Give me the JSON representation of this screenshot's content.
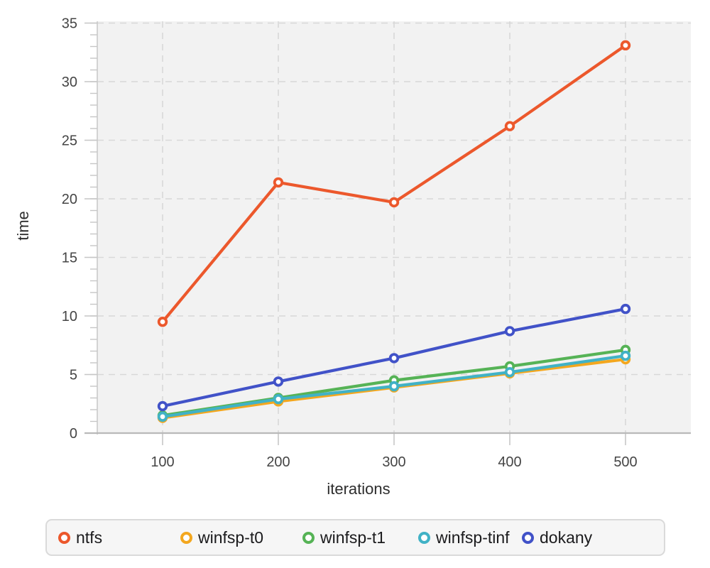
{
  "chart_data": {
    "type": "line",
    "title": "",
    "xlabel": "iterations",
    "ylabel": "time",
    "x": [
      100,
      200,
      300,
      400,
      500
    ],
    "series": [
      {
        "name": "ntfs",
        "color": "#ec582c",
        "values": [
          9.5,
          21.4,
          19.7,
          26.2,
          33.1
        ]
      },
      {
        "name": "winfsp-t0",
        "color": "#f3a71f",
        "values": [
          1.3,
          2.7,
          3.9,
          5.1,
          6.3
        ]
      },
      {
        "name": "winfsp-t1",
        "color": "#56b356",
        "values": [
          1.5,
          3.0,
          4.5,
          5.7,
          7.1
        ]
      },
      {
        "name": "winfsp-tinf",
        "color": "#41b2c6",
        "values": [
          1.4,
          2.9,
          4.0,
          5.2,
          6.6
        ]
      },
      {
        "name": "dokany",
        "color": "#4152c8",
        "values": [
          2.3,
          4.4,
          6.4,
          8.7,
          10.6
        ]
      }
    ],
    "xticks": [
      100,
      200,
      300,
      400,
      500
    ],
    "yticks": [
      0,
      5,
      10,
      15,
      20,
      25,
      30,
      35
    ],
    "ylim": [
      0,
      35
    ],
    "y_minor_step": 1,
    "grid": "dashed",
    "marker": "open-circle",
    "legend_position": "bottom",
    "plot_bg_color": "#f2f2f2",
    "grid_color": "#d8d8d8",
    "axis_color": "#b9b9b9",
    "tick_color": "#c6c6c6",
    "tick_label_color": "#454545",
    "axis_title_color": "#2d2d2d"
  }
}
